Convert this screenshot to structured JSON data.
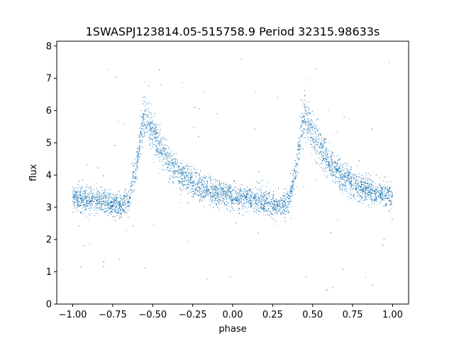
{
  "chart_data": {
    "type": "scatter",
    "title": "1SWASPJ123814.05-515758.9 Period 32315.98633s",
    "xlabel": "phase",
    "ylabel": "flux",
    "xlim": [
      -1.1,
      1.1
    ],
    "ylim": [
      0,
      8.15
    ],
    "x_ticks": [
      -1.0,
      -0.75,
      -0.5,
      -0.25,
      0.0,
      0.25,
      0.5,
      0.75,
      1.0
    ],
    "x_tick_labels": [
      "−1.00",
      "−0.75",
      "−0.50",
      "−0.25",
      "0.00",
      "0.25",
      "0.50",
      "0.75",
      "1.00"
    ],
    "y_ticks": [
      0,
      1,
      2,
      3,
      4,
      5,
      6,
      7,
      8
    ],
    "y_tick_labels": [
      "0",
      "1",
      "2",
      "3",
      "4",
      "5",
      "6",
      "7",
      "8"
    ],
    "grid": false,
    "marker_color": "#1f77b4",
    "series": [
      {
        "x": [
          -1.0,
          -0.9,
          -0.8,
          -0.7,
          -0.65,
          -0.6,
          -0.57,
          -0.55,
          -0.5,
          -0.4,
          -0.3,
          -0.2,
          -0.1,
          0.0,
          0.1,
          0.2,
          0.3,
          0.35,
          0.4,
          0.43,
          0.45,
          0.5,
          0.6,
          0.7,
          0.8,
          0.9,
          1.0
        ],
        "y": [
          3.3,
          3.25,
          3.15,
          3.05,
          3.2,
          4.3,
          5.4,
          5.9,
          5.3,
          4.4,
          3.9,
          3.6,
          3.45,
          3.35,
          3.25,
          3.15,
          3.05,
          3.2,
          4.3,
          5.4,
          5.9,
          5.3,
          4.4,
          3.9,
          3.6,
          3.45,
          3.35
        ]
      }
    ]
  }
}
